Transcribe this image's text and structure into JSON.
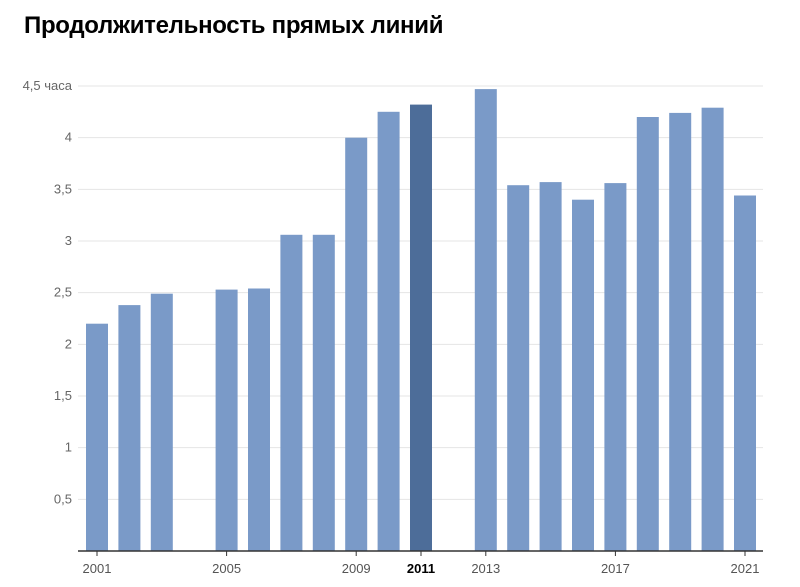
{
  "chart_data": {
    "type": "bar",
    "title": "Продолжительность прямых линий",
    "unit_label": "4,5 часа",
    "ylim": [
      0,
      4.5
    ],
    "yticks": [
      "0,5",
      "1",
      "1,5",
      "2",
      "2,5",
      "3",
      "3,5",
      "4"
    ],
    "ytick_values": [
      0.5,
      1,
      1.5,
      2,
      2.5,
      3,
      3.5,
      4
    ],
    "years": [
      2001,
      2002,
      2003,
      2004,
      2005,
      2006,
      2007,
      2008,
      2009,
      2010,
      2011,
      2012,
      2013,
      2014,
      2015,
      2016,
      2017,
      2018,
      2019,
      2020,
      2021
    ],
    "values": [
      2.2,
      2.38,
      2.49,
      null,
      2.53,
      2.54,
      3.06,
      3.06,
      4.0,
      4.25,
      4.32,
      null,
      4.47,
      3.54,
      3.57,
      3.4,
      3.56,
      4.2,
      4.24,
      4.29,
      3.44
    ],
    "xtick_labels": [
      {
        "year": 2001,
        "label": "2001",
        "bold": false
      },
      {
        "year": 2005,
        "label": "2005",
        "bold": false
      },
      {
        "year": 2009,
        "label": "2009",
        "bold": false
      },
      {
        "year": 2011,
        "label": "2011",
        "bold": true
      },
      {
        "year": 2013,
        "label": "2013",
        "bold": false
      },
      {
        "year": 2017,
        "label": "2017",
        "bold": false
      },
      {
        "year": 2021,
        "label": "2021",
        "bold": false
      }
    ],
    "highlight_year": 2011,
    "bar_color": "#7a9ac8",
    "highlight_color": "#4d6d99",
    "grid": true
  }
}
